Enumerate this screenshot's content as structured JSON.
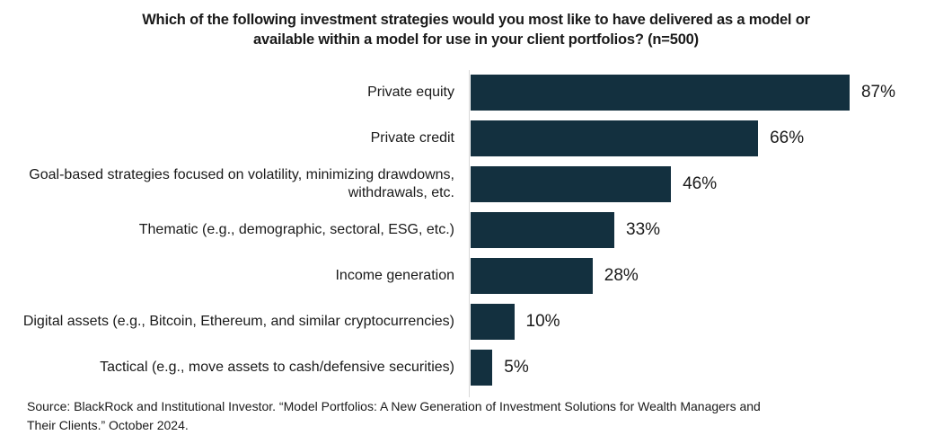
{
  "chart_data": {
    "type": "bar",
    "orientation": "horizontal",
    "title": "Which of the following investment strategies would you most like to have delivered as a model or available within a model for use in your client portfolios? (n=500)",
    "title_lines": [
      "Which of the following investment strategies would you most like to have delivered as a model or",
      "available within a model for use in your client portfolios? (n=500)"
    ],
    "categories": [
      "Private equity",
      "Private credit",
      "Goal-based strategies focused on volatility, minimizing drawdowns, withdrawals, etc.",
      "Thematic (e.g., demographic, sectoral, ESG, etc.)",
      "Income generation",
      "Digital assets (e.g., Bitcoin, Ethereum, and similar cryptocurrencies)",
      "Tactical (e.g., move assets to cash/defensive securities)"
    ],
    "values": [
      87,
      66,
      46,
      33,
      28,
      10,
      5
    ],
    "value_labels": [
      "87%",
      "66%",
      "46%",
      "33%",
      "28%",
      "10%",
      "5%"
    ],
    "xlabel": "",
    "ylabel": "",
    "xlim": [
      0,
      100
    ],
    "grid": "off",
    "legend": "none",
    "bar_color": "#13303f",
    "axis_line_color": "#d9d9d9",
    "text_color": "#1a1a1a",
    "background_color": "#ffffff"
  },
  "source": {
    "lines": [
      "Source: BlackRock and Institutional Investor. “Model Portfolios: A New Generation of Investment Solutions for Wealth Managers and",
      "Their Clients.” October 2024."
    ]
  }
}
